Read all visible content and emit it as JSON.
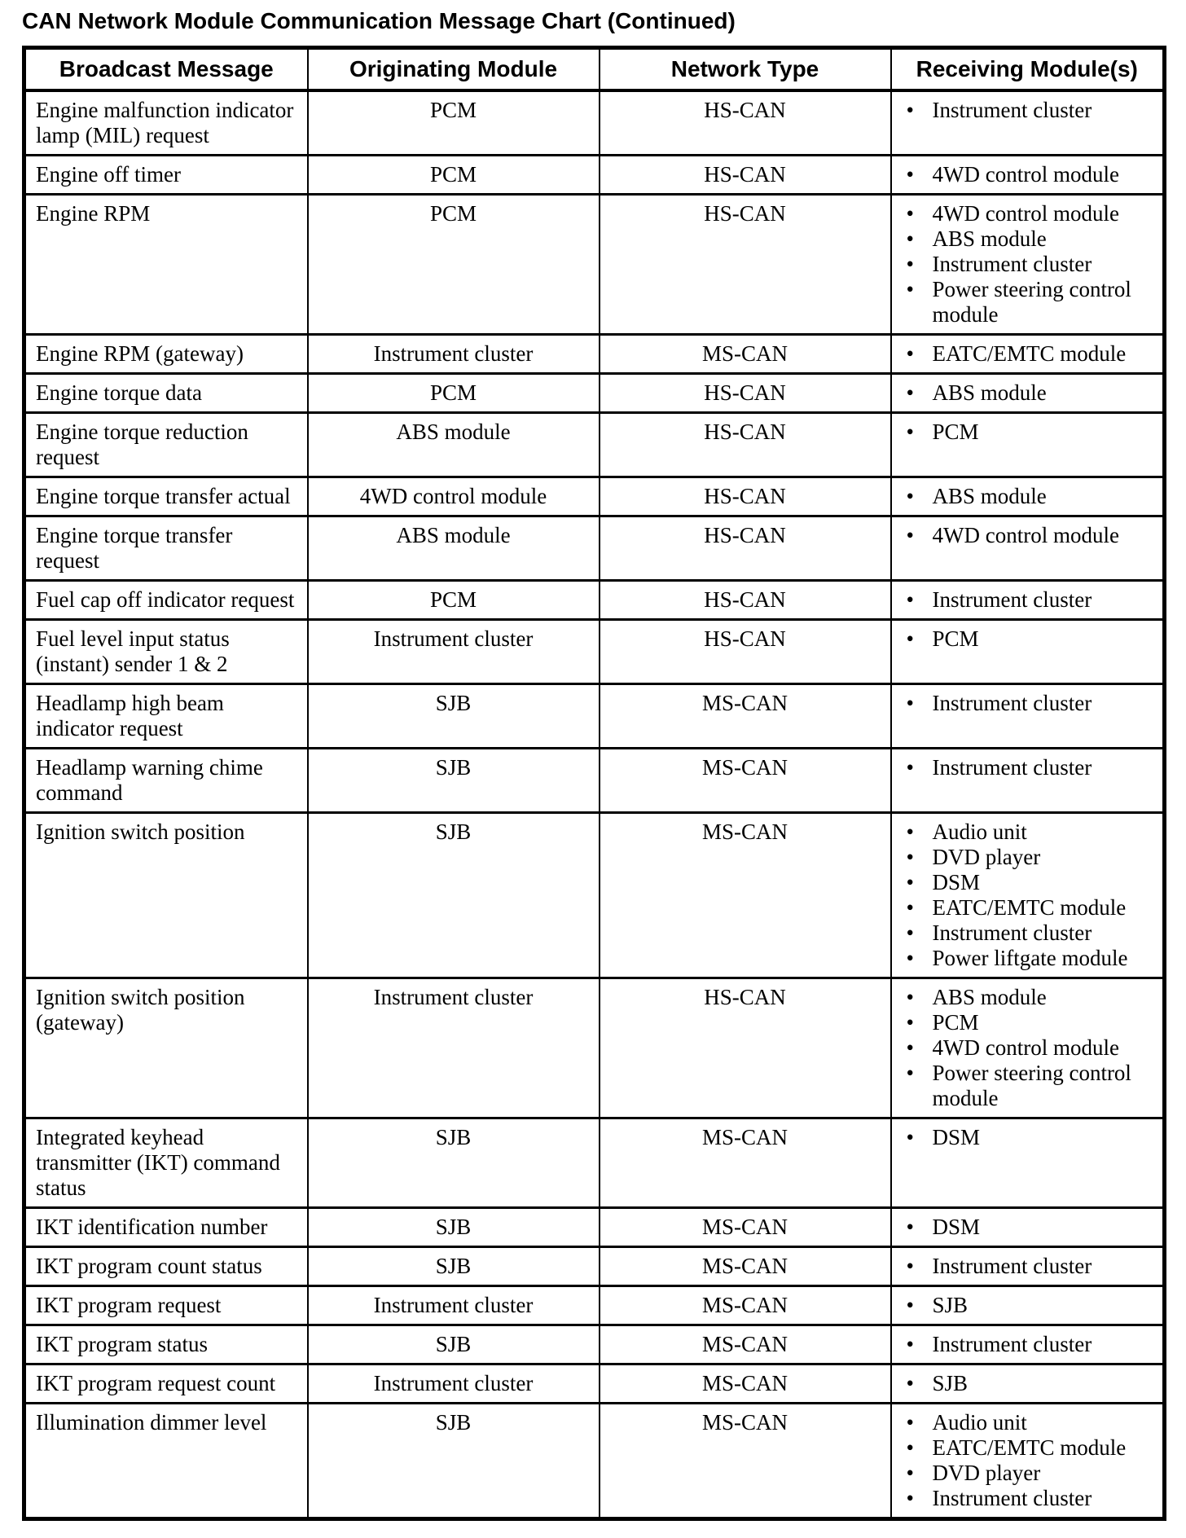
{
  "page": {
    "title": "CAN Network Module Communication Message Chart (Continued)"
  },
  "table": {
    "bullet": "•",
    "columns": [
      "Broadcast Message",
      "Originating Module",
      "Network Type",
      "Receiving Module(s)"
    ],
    "rows": [
      {
        "message": "Engine malfunction indicator lamp (MIL) request",
        "origin": "PCM",
        "network": "HS-CAN",
        "receivers": [
          "Instrument cluster"
        ]
      },
      {
        "message": "Engine off timer",
        "origin": "PCM",
        "network": "HS-CAN",
        "receivers": [
          "4WD control module"
        ]
      },
      {
        "message": "Engine RPM",
        "origin": "PCM",
        "network": "HS-CAN",
        "receivers": [
          "4WD control module",
          "ABS module",
          "Instrument cluster",
          "Power steering control module"
        ]
      },
      {
        "message": "Engine RPM (gateway)",
        "origin": "Instrument cluster",
        "network": "MS-CAN",
        "receivers": [
          "EATC/EMTC module"
        ]
      },
      {
        "message": "Engine torque data",
        "origin": "PCM",
        "network": "HS-CAN",
        "receivers": [
          "ABS module"
        ]
      },
      {
        "message": "Engine torque reduction request",
        "origin": "ABS module",
        "network": "HS-CAN",
        "receivers": [
          "PCM"
        ]
      },
      {
        "message": "Engine torque transfer actual",
        "origin": "4WD control module",
        "network": "HS-CAN",
        "receivers": [
          "ABS module"
        ]
      },
      {
        "message": "Engine torque transfer request",
        "origin": "ABS module",
        "network": "HS-CAN",
        "receivers": [
          "4WD control module"
        ]
      },
      {
        "message": "Fuel cap off indicator request",
        "origin": "PCM",
        "network": "HS-CAN",
        "receivers": [
          "Instrument cluster"
        ]
      },
      {
        "message": "Fuel level input status (instant) sender 1 & 2",
        "origin": "Instrument cluster",
        "network": "HS-CAN",
        "receivers": [
          "PCM"
        ]
      },
      {
        "message": "Headlamp high beam indicator request",
        "origin": "SJB",
        "network": "MS-CAN",
        "receivers": [
          "Instrument cluster"
        ]
      },
      {
        "message": "Headlamp warning chime command",
        "origin": "SJB",
        "network": "MS-CAN",
        "receivers": [
          "Instrument cluster"
        ]
      },
      {
        "message": "Ignition switch position",
        "origin": "SJB",
        "network": "MS-CAN",
        "receivers": [
          "Audio unit",
          "DVD player",
          "DSM",
          "EATC/EMTC module",
          "Instrument cluster",
          "Power liftgate module"
        ]
      },
      {
        "message": "Ignition switch position (gateway)",
        "origin": "Instrument cluster",
        "network": "HS-CAN",
        "receivers": [
          "ABS module",
          "PCM",
          "4WD control module",
          "Power steering control module"
        ]
      },
      {
        "message": "Integrated keyhead transmitter (IKT) command status",
        "origin": "SJB",
        "network": "MS-CAN",
        "receivers": [
          "DSM"
        ]
      },
      {
        "message": "IKT identification number",
        "origin": "SJB",
        "network": "MS-CAN",
        "receivers": [
          "DSM"
        ]
      },
      {
        "message": "IKT program count status",
        "origin": "SJB",
        "network": "MS-CAN",
        "receivers": [
          "Instrument cluster"
        ]
      },
      {
        "message": "IKT program request",
        "origin": "Instrument cluster",
        "network": "MS-CAN",
        "receivers": [
          "SJB"
        ]
      },
      {
        "message": "IKT program status",
        "origin": "SJB",
        "network": "MS-CAN",
        "receivers": [
          "Instrument cluster"
        ]
      },
      {
        "message": "IKT program request count",
        "origin": "Instrument cluster",
        "network": "MS-CAN",
        "receivers": [
          "SJB"
        ]
      },
      {
        "message": "Illumination dimmer level",
        "origin": "SJB",
        "network": "MS-CAN",
        "receivers": [
          "Audio unit",
          "EATC/EMTC module",
          "DVD player",
          "Instrument cluster"
        ]
      }
    ]
  }
}
